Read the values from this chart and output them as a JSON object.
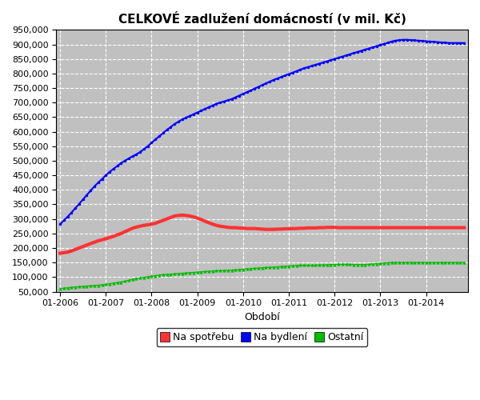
{
  "title": "CELKOVÉ zadlužení domácností (v mil. Kč)",
  "xlabel": "Období",
  "ylabel": "",
  "fig_bg_color": "#ffffff",
  "plot_bg_color": "#c0c0c0",
  "grid_color": "#ffffff",
  "line_colors": {
    "spotreba": "#ff3333",
    "bydleni": "#0000ff",
    "ostatni": "#00bb00"
  },
  "legend_labels": [
    "Na spotřebu",
    "Na bydlení",
    "Ostatní"
  ],
  "ylim": [
    50000,
    950000
  ],
  "yticks": [
    50000,
    100000,
    150000,
    200000,
    250000,
    300000,
    350000,
    400000,
    450000,
    500000,
    550000,
    600000,
    650000,
    700000,
    750000,
    800000,
    850000,
    900000,
    950000
  ],
  "xtick_labels": [
    "01-2006",
    "01-2007",
    "01-2008",
    "01-2009",
    "01-2010",
    "01-2011",
    "01-2012",
    "01-2013",
    "01-2014"
  ],
  "spotreba": [
    182000,
    184000,
    186000,
    190000,
    195000,
    200000,
    205000,
    210000,
    215000,
    220000,
    225000,
    228000,
    232000,
    236000,
    240000,
    245000,
    250000,
    256000,
    262000,
    268000,
    272000,
    275000,
    278000,
    280000,
    282000,
    285000,
    290000,
    295000,
    300000,
    305000,
    310000,
    312000,
    313000,
    312000,
    310000,
    307000,
    303000,
    298000,
    292000,
    287000,
    282000,
    278000,
    275000,
    273000,
    271000,
    270000,
    270000,
    269000,
    268000,
    267000,
    267000,
    267000,
    266000,
    265000,
    264000,
    264000,
    264000,
    265000,
    265000,
    266000,
    266000,
    267000,
    267000,
    268000,
    268000,
    269000,
    269000,
    269000,
    270000,
    270000,
    271000,
    271000,
    271000,
    270000,
    270000,
    270000,
    270000,
    270000,
    270000,
    270000,
    270000,
    270000,
    270000,
    270000,
    270000,
    270000,
    270000,
    270000,
    270000,
    270000,
    270000,
    270000,
    270000,
    270000,
    270000,
    270000,
    270000,
    270000,
    270000,
    270000,
    270000,
    270000,
    270000,
    270000,
    270000,
    270000,
    270000
  ],
  "bydleni": [
    282000,
    295000,
    308000,
    322000,
    337000,
    352000,
    367000,
    382000,
    397000,
    412000,
    425000,
    437000,
    450000,
    462000,
    472000,
    482000,
    492000,
    500000,
    508000,
    515000,
    522000,
    530000,
    540000,
    550000,
    562000,
    573000,
    584000,
    595000,
    606000,
    616000,
    626000,
    634000,
    642000,
    648000,
    654000,
    660000,
    666000,
    672000,
    678000,
    684000,
    690000,
    696000,
    700000,
    704000,
    708000,
    712000,
    718000,
    724000,
    730000,
    736000,
    742000,
    748000,
    754000,
    760000,
    766000,
    772000,
    778000,
    783000,
    788000,
    793000,
    798000,
    803000,
    808000,
    813000,
    818000,
    822000,
    826000,
    830000,
    834000,
    838000,
    842000,
    846000,
    850000,
    854000,
    858000,
    862000,
    866000,
    870000,
    874000,
    878000,
    882000,
    886000,
    890000,
    894000,
    898000,
    902000,
    906000,
    910000,
    913000,
    915000,
    916000,
    916000,
    915000,
    914000,
    913000,
    912000,
    911000,
    910000,
    909000,
    908000,
    907000,
    906000,
    905000,
    905000,
    905000,
    905000,
    905000
  ],
  "ostatni": [
    60000,
    62000,
    63000,
    65000,
    66000,
    67000,
    68000,
    69000,
    70000,
    71000,
    72000,
    73000,
    75000,
    77000,
    79000,
    81000,
    83000,
    86000,
    89000,
    92000,
    95000,
    97000,
    99000,
    101000,
    103000,
    105000,
    107000,
    108000,
    109000,
    110000,
    111000,
    112000,
    113000,
    114000,
    115000,
    116000,
    117000,
    118000,
    119000,
    120000,
    121000,
    122000,
    122000,
    123000,
    123000,
    124000,
    125000,
    126000,
    127000,
    128000,
    129000,
    130000,
    131000,
    132000,
    133000,
    134000,
    134000,
    135000,
    136000,
    137000,
    138000,
    139000,
    140000,
    141000,
    141000,
    141000,
    141000,
    141000,
    142000,
    142000,
    142000,
    143000,
    143000,
    144000,
    144000,
    144000,
    144000,
    143000,
    143000,
    143000,
    143000,
    144000,
    145000,
    146000,
    147000,
    148000,
    149000,
    150000,
    150000,
    150000,
    150000,
    150000,
    150000,
    150000,
    150000,
    150000,
    150000,
    150000,
    150000,
    150000,
    150000,
    150000,
    150000,
    150000,
    150000,
    150000,
    150000
  ]
}
